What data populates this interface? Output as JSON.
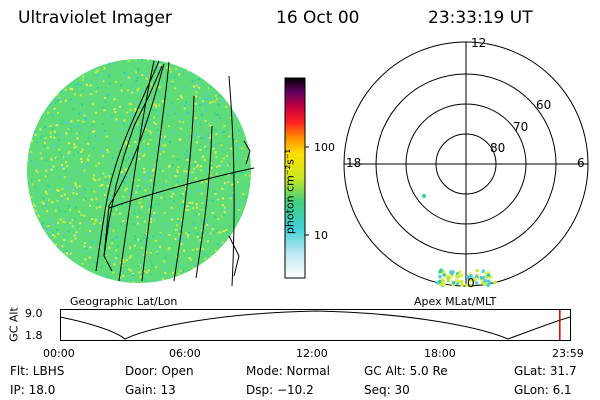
{
  "header": {
    "title": "Ultraviolet Imager",
    "date": "16 Oct 00",
    "time": "23:33:19 UT"
  },
  "colorbar": {
    "unit_text": "photon cm⁻²s⁻¹",
    "ticks": [
      "100",
      "10"
    ]
  },
  "polar": {
    "mlt_labels": {
      "top": "12",
      "left": "18",
      "right": "6",
      "bottom": "0"
    },
    "lat_labels": [
      "60",
      "70",
      "80"
    ]
  },
  "map_labels": {
    "geo": "Geographic Lat/Lon",
    "apex": "Apex MLat/MLT"
  },
  "timeline": {
    "ylabel": "GC Alt",
    "ytick_top": "9.0",
    "ytick_bottom": "1.8",
    "xticks": [
      "00:00",
      "06:00",
      "12:00",
      "18:00",
      "23:59"
    ],
    "marker_fraction": 0.98
  },
  "footer": {
    "flt": "Flt: LBHS",
    "door": "Door: Open",
    "mode": "Mode: Normal",
    "gcalt": "GC Alt: 5.0 Re",
    "glat": "GLat: 31.7",
    "ip": "IP: 18.0",
    "gain": "Gain: 13",
    "dsp": "Dsp: −10.2",
    "seq": "Seq: 30",
    "glon": "GLon: 6.1"
  },
  "colors": {
    "image_base": "#5fdc7a",
    "image_speckle": [
      "#c8ec3a",
      "#2fd0a0",
      "#e4f050",
      "#58c8e0"
    ],
    "marker": "#d00000"
  }
}
